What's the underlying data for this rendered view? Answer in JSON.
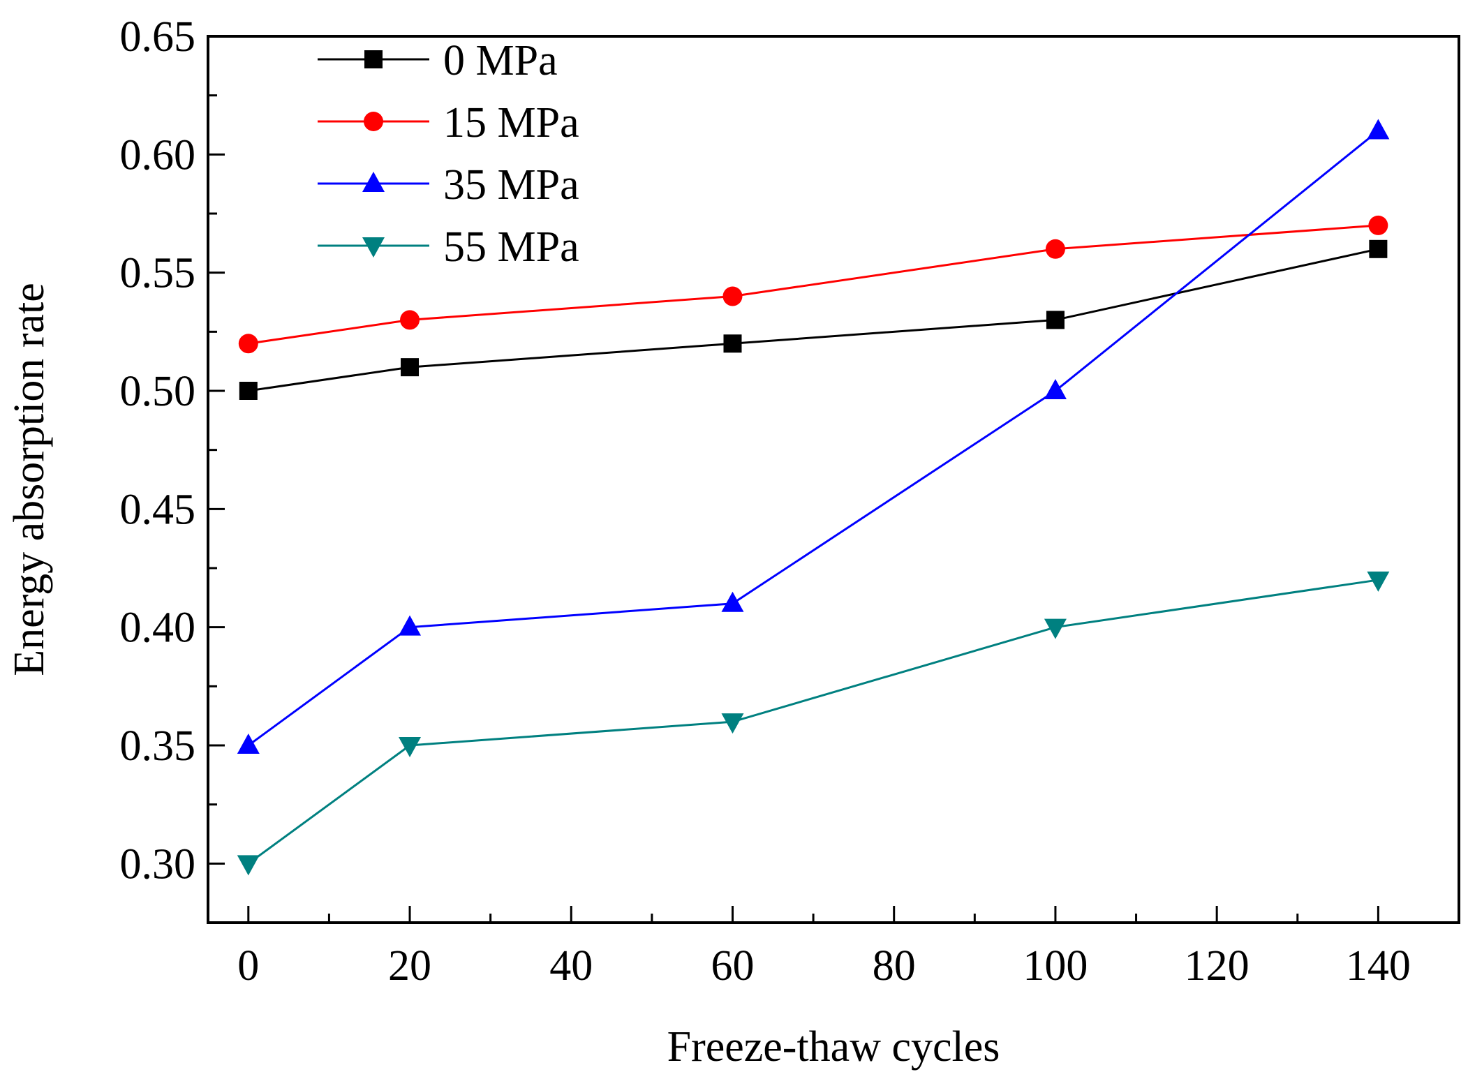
{
  "chart_data": {
    "type": "line",
    "title": "",
    "xlabel": "Freeze-thaw cycles",
    "ylabel": "Energy absorption rate",
    "xlim": [
      -5,
      150
    ],
    "ylim": [
      0.275,
      0.65
    ],
    "x_ticks": [
      0,
      20,
      40,
      60,
      80,
      100,
      120,
      140
    ],
    "x_tick_labels": [
      "0",
      "20",
      "40",
      "60",
      "80",
      "100",
      "120",
      "140"
    ],
    "y_ticks": [
      0.3,
      0.35,
      0.4,
      0.45,
      0.5,
      0.55,
      0.6,
      0.65
    ],
    "y_tick_labels": [
      "0.30",
      "0.35",
      "0.40",
      "0.45",
      "0.50",
      "0.55",
      "0.60",
      "0.65"
    ],
    "grid": false,
    "legend_position": "top-left",
    "x": [
      0,
      20,
      60,
      100,
      140
    ],
    "series": [
      {
        "name": "0 MPa",
        "marker": "square",
        "color": "#000000",
        "values": [
          0.5,
          0.51,
          0.52,
          0.53,
          0.56
        ]
      },
      {
        "name": "15 MPa",
        "marker": "circle",
        "color": "#ff0000",
        "values": [
          0.52,
          0.53,
          0.54,
          0.56,
          0.57
        ]
      },
      {
        "name": "35 MPa",
        "marker": "triangle-up",
        "color": "#0000ff",
        "values": [
          0.35,
          0.4,
          0.41,
          0.5,
          0.61
        ]
      },
      {
        "name": "55 MPa",
        "marker": "triangle-down",
        "color": "#008080",
        "values": [
          0.3,
          0.35,
          0.36,
          0.4,
          0.42
        ]
      }
    ]
  }
}
